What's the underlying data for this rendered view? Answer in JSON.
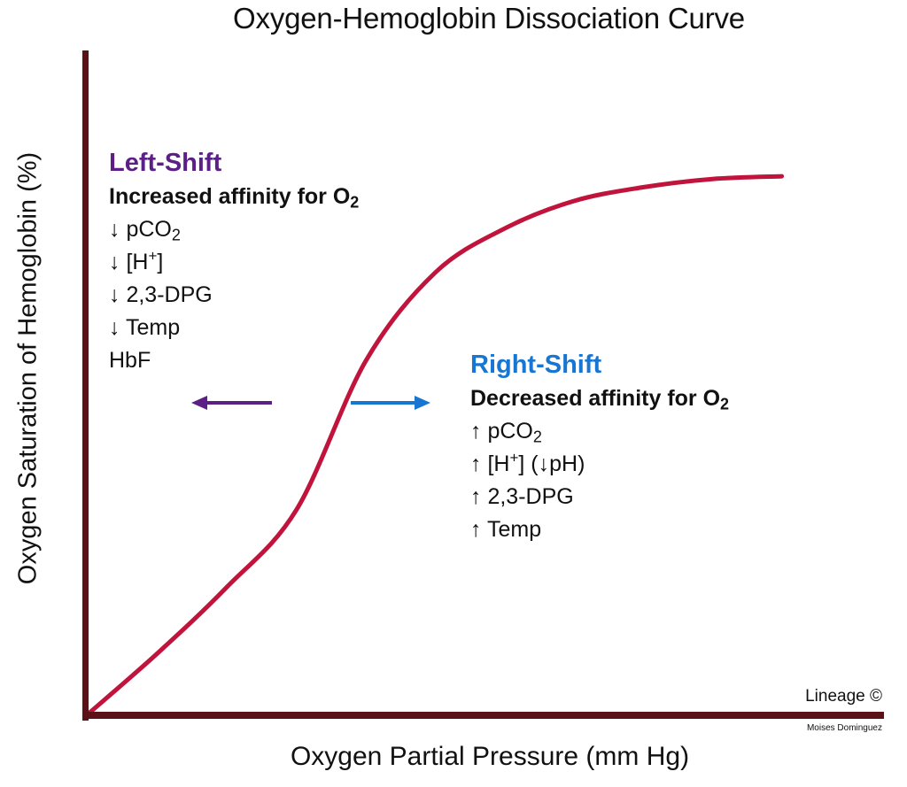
{
  "chart_data": {
    "type": "line",
    "title": "Oxygen-Hemoglobin Dissociation Curve",
    "xlabel": "Oxygen Partial Pressure (mm Hg)",
    "ylabel": "Oxygen Saturation of Hemoglobin (%)",
    "grid": false,
    "series": [
      {
        "color": "#c0143c",
        "x": [
          0,
          10,
          20,
          30,
          40,
          50,
          60,
          70,
          80,
          90,
          100
        ],
        "y": [
          0,
          11,
          23,
          37,
          64,
          80,
          88,
          93,
          95.5,
          97,
          97.5
        ]
      }
    ],
    "xlim": [
      0,
      115
    ],
    "ylim": [
      0,
      120
    ],
    "annotations": {
      "left_shift": {
        "heading": "Left-Shift",
        "heading_color": "#5b1f86",
        "affinity": "Increased affinity  for O",
        "affinity_sub": "2",
        "arrow_direction": "left",
        "arrow_color": "#5b1f86",
        "factors": [
          {
            "prefix": "↓ pCO",
            "sub": "2",
            "sup": "",
            "suffix": ""
          },
          {
            "prefix": "↓ [H",
            "sub": "",
            "sup": "+",
            "suffix": "]"
          },
          {
            "prefix": "↓ 2,3-DPG",
            "sub": "",
            "sup": "",
            "suffix": ""
          },
          {
            "prefix": "↓ Temp",
            "sub": "",
            "sup": "",
            "suffix": ""
          },
          {
            "prefix": "HbF",
            "sub": "",
            "sup": "",
            "suffix": ""
          }
        ]
      },
      "right_shift": {
        "heading": "Right-Shift",
        "heading_color": "#1776d2",
        "affinity": "Decreased affinity  for O",
        "affinity_sub": "2",
        "arrow_direction": "right",
        "arrow_color": "#1776d2",
        "factors": [
          {
            "prefix": "↑ pCO",
            "sub": "2",
            "sup": "",
            "suffix": ""
          },
          {
            "prefix": "↑ [H",
            "sub": "",
            "sup": "+",
            "suffix": "] (↓pH)"
          },
          {
            "prefix": "↑ 2,3-DPG",
            "sub": "",
            "sup": "",
            "suffix": ""
          },
          {
            "prefix": "↑ Temp",
            "sub": "",
            "sup": "",
            "suffix": ""
          }
        ]
      }
    },
    "credits": {
      "watermark": "Lineage ©",
      "author": "Moises Dominguez"
    }
  }
}
